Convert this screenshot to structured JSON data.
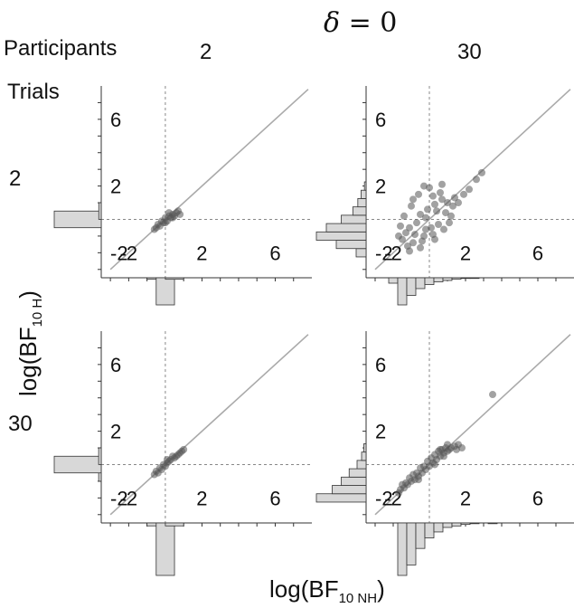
{
  "title": {
    "delta_symbol": "δ",
    "rest": " = 0"
  },
  "header": {
    "participants_label": "Participants",
    "trials_label": "Trials",
    "participant_levels": [
      "2",
      "30"
    ],
    "trial_levels": [
      "2",
      "30"
    ]
  },
  "axes": {
    "xlabel_main": "log(BF",
    "xlabel_sub": "10 NH",
    "xlabel_end": ")",
    "ylabel_main": "log(BF",
    "ylabel_sub": "10 H",
    "ylabel_end": ")"
  },
  "colors": {
    "identity_line": "#aaaaaa",
    "reference_lines": "#888888",
    "points": "#555555",
    "histogram_fill": "#d8d8d8",
    "histogram_stroke": "#333333",
    "frame": "#333333"
  },
  "chart_data": [
    {
      "type": "scatter",
      "participants": "2",
      "trials": "2",
      "xlim": [
        -3.5,
        8
      ],
      "ylim": [
        -3.5,
        8
      ],
      "x_ticks": [
        "-2",
        "2",
        "6"
      ],
      "y_ticks": [
        "-2",
        "2",
        "6"
      ],
      "grid": false,
      "reference_lines": {
        "x": 0,
        "y": 0,
        "identity": true
      },
      "points": [
        [
          -0.4,
          -0.3
        ],
        [
          -0.2,
          -0.1
        ],
        [
          0.0,
          0.1
        ],
        [
          0.2,
          0.2
        ],
        [
          0.4,
          0.3
        ],
        [
          0.6,
          0.4
        ],
        [
          -0.3,
          -0.4
        ],
        [
          0.1,
          -0.1
        ],
        [
          0.3,
          0.1
        ],
        [
          0.5,
          0.2
        ],
        [
          -0.5,
          -0.5
        ],
        [
          0.2,
          0.4
        ],
        [
          0.7,
          0.5
        ],
        [
          -0.1,
          -0.2
        ],
        [
          0.4,
          0.1
        ],
        [
          0.8,
          0.3
        ],
        [
          -0.6,
          -0.6
        ],
        [
          0.0,
          -0.2
        ]
      ],
      "y_histogram": {
        "bins": [
          -0.5,
          0.0,
          0.5
        ],
        "counts": [
          0,
          95,
          5
        ]
      },
      "x_histogram": {
        "bins": [
          -0.5,
          0.0,
          0.5
        ],
        "counts": [
          5,
          90,
          5
        ]
      }
    },
    {
      "type": "scatter",
      "participants": "30",
      "trials": "2",
      "xlim": [
        -3.5,
        8
      ],
      "ylim": [
        -3.5,
        8
      ],
      "x_ticks": [
        "-2",
        "2",
        "6"
      ],
      "y_ticks": [
        "-2",
        "2",
        "6"
      ],
      "grid": false,
      "reference_lines": {
        "x": 0,
        "y": 0,
        "identity": true
      },
      "points": [
        [
          -1.5,
          -1.2
        ],
        [
          -1.3,
          -0.8
        ],
        [
          -1.1,
          -0.5
        ],
        [
          -0.9,
          -1.4
        ],
        [
          -0.7,
          -0.2
        ],
        [
          -0.5,
          0.3
        ],
        [
          -0.3,
          -1.0
        ],
        [
          -0.1,
          0.6
        ],
        [
          0.1,
          -0.5
        ],
        [
          0.3,
          0.9
        ],
        [
          0.5,
          -0.3
        ],
        [
          0.7,
          1.2
        ],
        [
          0.9,
          0.4
        ],
        [
          1.1,
          -0.2
        ],
        [
          1.3,
          0.8
        ],
        [
          -1.4,
          0.2
        ],
        [
          -1.2,
          -1.6
        ],
        [
          -1.0,
          0.8
        ],
        [
          -0.8,
          -0.9
        ],
        [
          -0.6,
          1.5
        ],
        [
          -0.4,
          -1.3
        ],
        [
          -0.2,
          0.1
        ],
        [
          0.0,
          1.9
        ],
        [
          0.2,
          -0.9
        ],
        [
          0.4,
          0.5
        ],
        [
          0.6,
          1.6
        ],
        [
          0.8,
          -0.6
        ],
        [
          1.0,
          1.0
        ],
        [
          1.2,
          0.2
        ],
        [
          1.4,
          1.3
        ],
        [
          -1.6,
          -0.4
        ],
        [
          -0.9,
          1.2
        ],
        [
          -0.3,
          2.0
        ],
        [
          0.2,
          1.4
        ],
        [
          0.7,
          2.1
        ],
        [
          1.6,
          1.0
        ],
        [
          1.9,
          1.5
        ],
        [
          2.2,
          1.8
        ],
        [
          2.6,
          2.4
        ],
        [
          2.9,
          2.8
        ],
        [
          -1.1,
          -1.9
        ],
        [
          -0.5,
          -1.7
        ],
        [
          0.3,
          -1.2
        ],
        [
          -1.7,
          -1.0
        ],
        [
          -0.2,
          -0.6
        ]
      ],
      "y_histogram": {
        "bins": [
          -2,
          -1.5,
          -1,
          -0.5,
          0,
          0.5,
          1,
          1.5,
          2
        ],
        "counts": [
          6,
          18,
          30,
          24,
          15,
          8,
          5,
          3,
          1
        ]
      },
      "x_histogram": {
        "bins": [
          -2,
          -1.5,
          -1,
          -0.5,
          0,
          0.5,
          1,
          1.5,
          2,
          2.5,
          3
        ],
        "counts": [
          8,
          40,
          26,
          16,
          10,
          6,
          4,
          2,
          1,
          1,
          0
        ]
      }
    },
    {
      "type": "scatter",
      "participants": "2",
      "trials": "30",
      "xlim": [
        -3.5,
        8
      ],
      "ylim": [
        -3.5,
        8
      ],
      "x_ticks": [
        "-2",
        "2",
        "6"
      ],
      "y_ticks": [
        "-2",
        "2",
        "6"
      ],
      "grid": false,
      "reference_lines": {
        "x": 0,
        "y": 0,
        "identity": true
      },
      "points": [
        [
          -0.5,
          -0.4
        ],
        [
          -0.3,
          -0.2
        ],
        [
          -0.1,
          0.0
        ],
        [
          0.1,
          0.1
        ],
        [
          0.3,
          0.3
        ],
        [
          0.5,
          0.4
        ],
        [
          0.7,
          0.6
        ],
        [
          0.9,
          0.8
        ],
        [
          -0.4,
          -0.5
        ],
        [
          0.0,
          -0.1
        ],
        [
          0.2,
          0.2
        ],
        [
          0.4,
          0.5
        ],
        [
          0.6,
          0.5
        ],
        [
          -0.2,
          -0.3
        ],
        [
          0.8,
          0.7
        ],
        [
          1.0,
          0.9
        ],
        [
          -0.6,
          -0.6
        ],
        [
          0.1,
          0.3
        ]
      ],
      "y_histogram": {
        "bins": [
          -0.5,
          0.0,
          0.5
        ],
        "counts": [
          5,
          90,
          5
        ]
      },
      "x_histogram": {
        "bins": [
          -0.5,
          0.0,
          0.5
        ],
        "counts": [
          5,
          90,
          5
        ]
      }
    },
    {
      "type": "scatter",
      "participants": "30",
      "trials": "30",
      "xlim": [
        -3.5,
        8
      ],
      "ylim": [
        -3.5,
        8
      ],
      "x_ticks": [
        "-2",
        "2",
        "6"
      ],
      "y_ticks": [
        "-2",
        "2",
        "6"
      ],
      "grid": false,
      "reference_lines": {
        "x": 0,
        "y": 0,
        "identity": true
      },
      "points": [
        [
          -1.6,
          -1.5
        ],
        [
          -1.4,
          -1.4
        ],
        [
          -1.2,
          -1.2
        ],
        [
          -1.0,
          -1.0
        ],
        [
          -0.8,
          -0.9
        ],
        [
          -0.6,
          -0.7
        ],
        [
          -0.4,
          -0.5
        ],
        [
          -0.2,
          -0.3
        ],
        [
          0.0,
          -0.1
        ],
        [
          0.2,
          0.1
        ],
        [
          0.4,
          0.3
        ],
        [
          0.6,
          0.5
        ],
        [
          0.8,
          0.7
        ],
        [
          1.0,
          0.8
        ],
        [
          1.2,
          1.0
        ],
        [
          1.4,
          1.1
        ],
        [
          1.6,
          1.2
        ],
        [
          -1.5,
          -1.2
        ],
        [
          -1.3,
          -1.1
        ],
        [
          -1.1,
          -0.8
        ],
        [
          -0.9,
          -0.6
        ],
        [
          -0.7,
          -0.5
        ],
        [
          -0.5,
          -0.2
        ],
        [
          -0.3,
          -0.1
        ],
        [
          -0.1,
          0.2
        ],
        [
          0.1,
          0.4
        ],
        [
          0.3,
          0.6
        ],
        [
          0.5,
          0.8
        ],
        [
          0.7,
          0.9
        ],
        [
          0.9,
          1.0
        ],
        [
          1.1,
          0.9
        ],
        [
          -1.7,
          -1.7
        ],
        [
          -0.6,
          -0.9
        ],
        [
          0.3,
          0.0
        ],
        [
          0.8,
          0.5
        ],
        [
          1.5,
          0.9
        ],
        [
          1.8,
          1.0
        ],
        [
          0.6,
          0.9
        ],
        [
          1.0,
          1.2
        ],
        [
          3.5,
          4.2
        ]
      ],
      "y_histogram": {
        "bins": [
          -2,
          -1.5,
          -1,
          -0.5,
          0,
          0.5,
          1
        ],
        "counts": [
          44,
          30,
          22,
          15,
          8,
          4,
          2
        ]
      },
      "x_histogram": {
        "bins": [
          -2,
          -1.5,
          -1,
          -0.5,
          0,
          0.5,
          1,
          1.5,
          2,
          2.5,
          3,
          3.5
        ],
        "counts": [
          0,
          70,
          56,
          34,
          20,
          12,
          6,
          4,
          2,
          1,
          0,
          1
        ]
      }
    }
  ]
}
